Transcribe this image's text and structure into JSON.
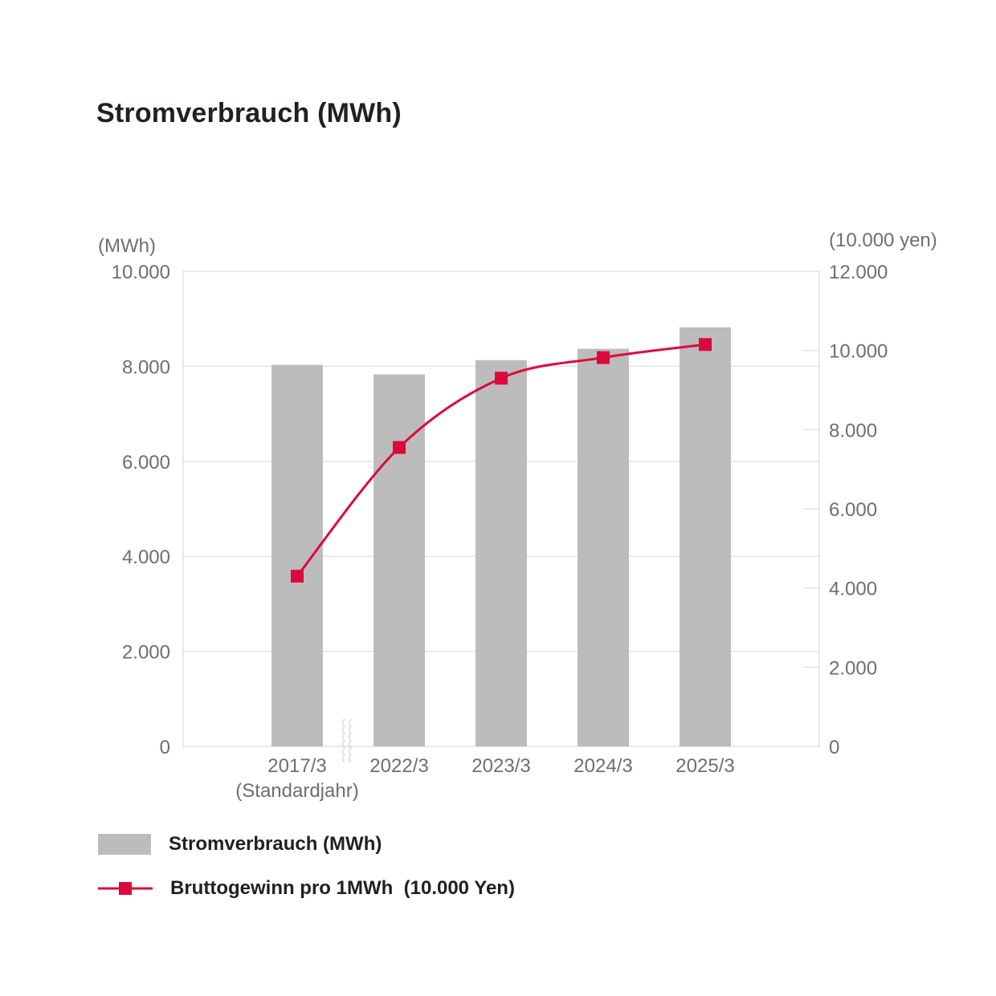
{
  "chart_data": {
    "type": "bar",
    "title": "Stromverbrauch (MWh)",
    "categories": [
      "2017/3",
      "2022/3",
      "2023/3",
      "2024/3",
      "2025/3"
    ],
    "category_sublabels": [
      "(Standardjahr)",
      "",
      "",
      "",
      ""
    ],
    "y_left": {
      "unit": "(MWh)",
      "ylim": [
        0,
        10000
      ],
      "ticks": [
        "0",
        "2.000",
        "4.000",
        "6.000",
        "8.000",
        "10.000"
      ],
      "tick_values": [
        0,
        2000,
        4000,
        6000,
        8000,
        10000
      ]
    },
    "y_right": {
      "unit": "(10.000 yen)",
      "ylim": [
        0,
        12000
      ],
      "ticks": [
        "0",
        "2.000",
        "4.000",
        "6.000",
        "8.000",
        "10.000",
        "12.000"
      ],
      "tick_values": [
        0,
        2000,
        4000,
        6000,
        8000,
        10000,
        12000
      ]
    },
    "series": [
      {
        "name": "Stromverbrauch (MWh)",
        "type": "bar",
        "axis": "left",
        "color": "#bcbcbc",
        "values": [
          8030,
          7830,
          8130,
          8370,
          8820
        ]
      },
      {
        "name": "Bruttogewinn pro 1MWh  (10.000 Yen)",
        "type": "line",
        "axis": "right",
        "color": "#dc0a3c",
        "values": [
          4300,
          7550,
          9300,
          9820,
          10150
        ]
      }
    ],
    "axis_break_between": [
      "2017/3",
      "2022/3"
    ],
    "grid": true,
    "legend_position": "bottom-left"
  }
}
